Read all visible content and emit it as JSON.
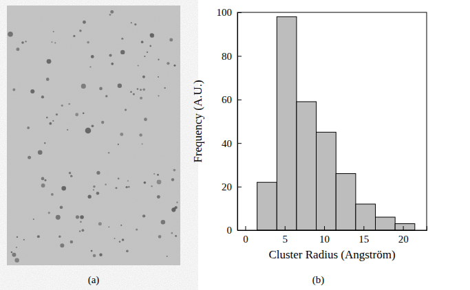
{
  "panel_labels": [
    "(a)",
    "(b)"
  ],
  "chart_data": {
    "type": "histogram",
    "x_label": "Cluster Radius (Angström)",
    "y_label": "Frequency (A.U.)",
    "bins": [
      1.5,
      4,
      6.5,
      9,
      11.5,
      14,
      16.5,
      19,
      21.5
    ],
    "values": [
      22,
      98,
      59,
      45,
      26,
      12,
      6,
      3
    ],
    "color": "#bdbdbd",
    "xlim": [
      -1,
      23
    ],
    "xticks": [
      0,
      5,
      10,
      15,
      20
    ],
    "ylim": [
      0,
      100
    ],
    "yticks": [
      0,
      20,
      40,
      60,
      80,
      100
    ],
    "grid": false
  }
}
